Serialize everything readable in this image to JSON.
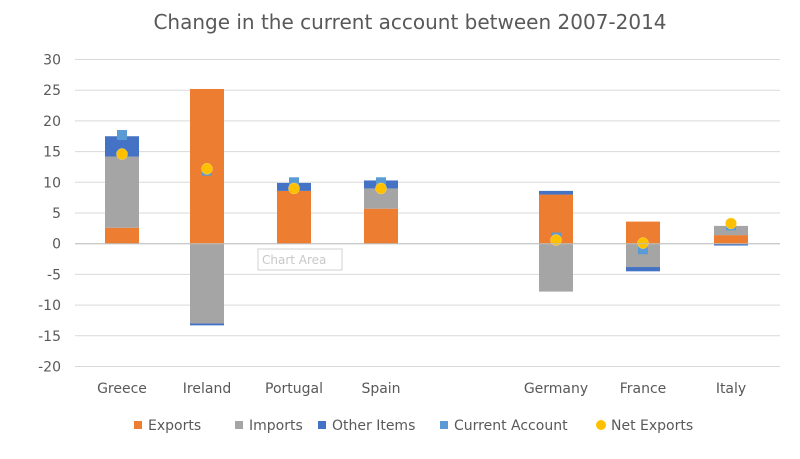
{
  "chart_data": {
    "type": "bar",
    "stacked": true,
    "title": "Change in the current account between 2007-2014",
    "xlabel": "",
    "ylabel": "",
    "ylim": [
      -20,
      30
    ],
    "yticks": [
      30,
      25,
      20,
      15,
      10,
      5,
      0,
      -5,
      -10,
      -15,
      -20
    ],
    "grid": true,
    "legend_position": "bottom",
    "categories": [
      "Greece",
      "Ireland",
      "Portugal",
      "Spain",
      "",
      "Germany",
      "France",
      "Italy"
    ],
    "series": [
      {
        "name": "Exports",
        "kind": "bar",
        "color": "#ED7D31",
        "values": [
          2.6,
          25.2,
          8.6,
          5.7,
          null,
          8.0,
          3.6,
          1.4
        ]
      },
      {
        "name": "Imports",
        "kind": "bar",
        "color": "#A5A5A5",
        "values": [
          11.6,
          -13.0,
          0,
          3.3,
          null,
          -7.8,
          -3.8,
          1.5
        ]
      },
      {
        "name": "Other Items",
        "kind": "bar",
        "color": "#4472C4",
        "values": [
          3.3,
          -0.3,
          1.3,
          1.3,
          null,
          0.6,
          -0.7,
          -0.3
        ]
      },
      {
        "name": "Current Account",
        "kind": "marker-square",
        "color": "#5B9BD5",
        "values": [
          17.7,
          11.9,
          10.0,
          10.0,
          null,
          1.0,
          -0.9,
          3.0
        ]
      },
      {
        "name": "Net Exports",
        "kind": "marker-circle",
        "color": "#FFC000",
        "values": [
          14.6,
          12.2,
          9.0,
          9.0,
          null,
          0.6,
          0.1,
          3.3
        ]
      }
    ],
    "tooltip": "Chart Area"
  }
}
